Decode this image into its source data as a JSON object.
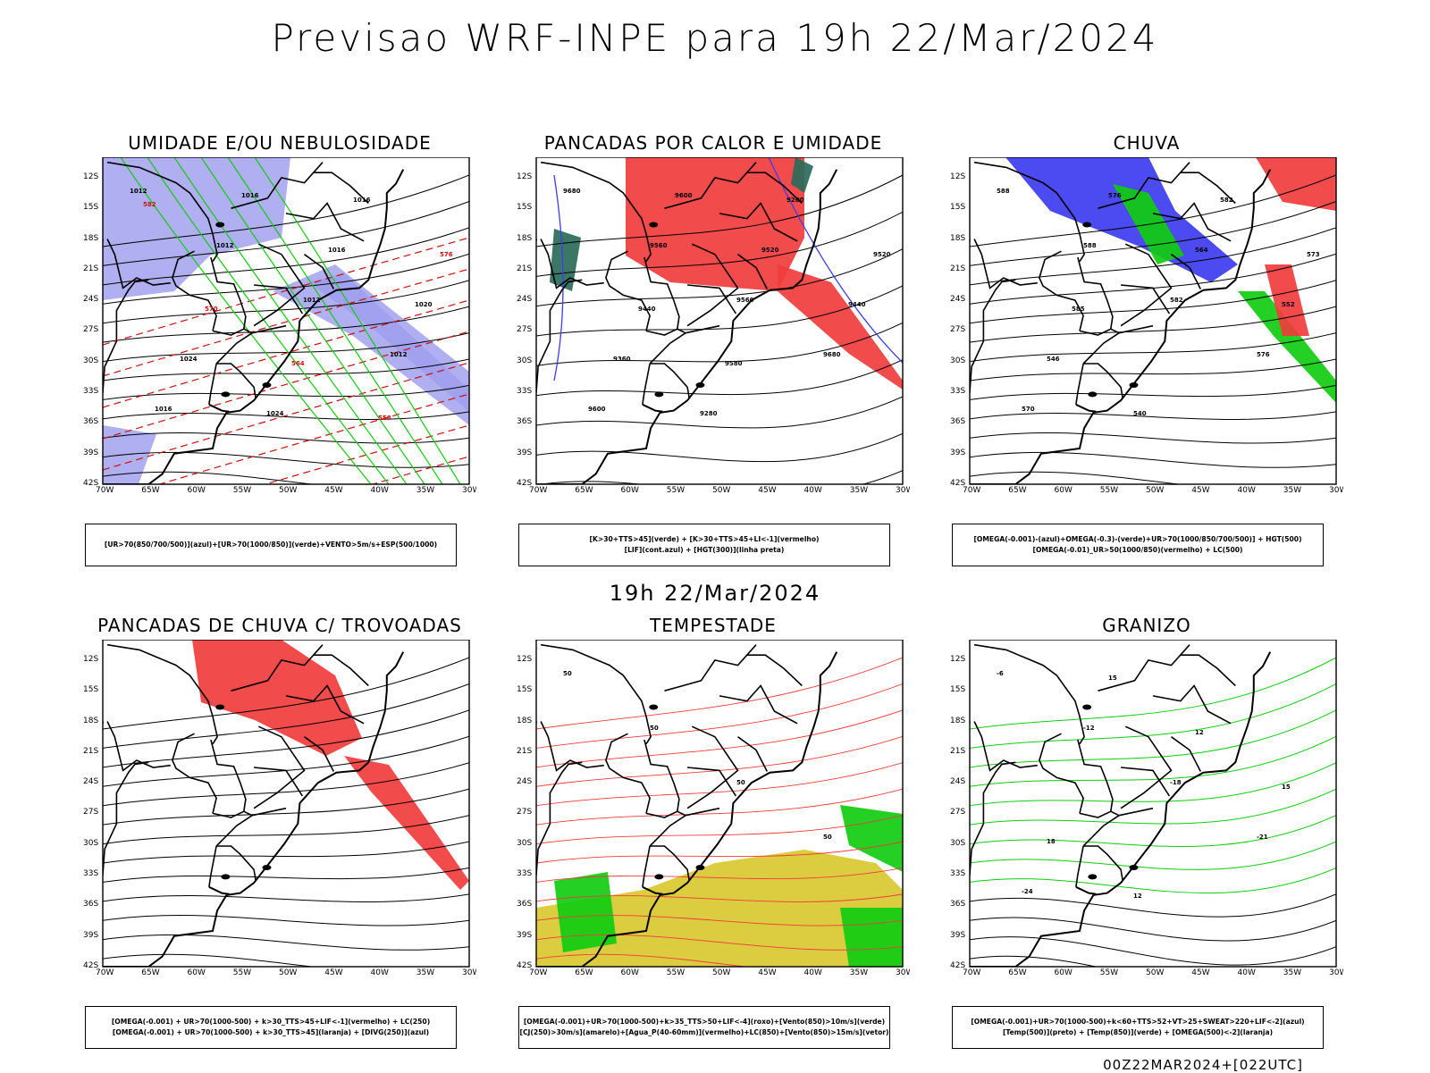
{
  "title": "Previsao WRF-INPE  para 19h 22/Mar/2024",
  "subtitle": "19h 22/Mar/2024",
  "footer": "00Z22MAR2024+[022UTC]",
  "lat_labels": [
    "12S",
    "15S",
    "18S",
    "21S",
    "24S",
    "27S",
    "30S",
    "33S",
    "36S",
    "39S",
    "42S"
  ],
  "lon_labels": [
    "70W",
    "65W",
    "60W",
    "55W",
    "50W",
    "45W",
    "40W",
    "35W",
    "30W"
  ],
  "panels": [
    {
      "title": "UMIDADE E/OU NEBULOSIDADE",
      "legend": [
        "[UR>70(850/700/500)](azul)+[UR>70(1000/850)](verde)+VENTO>5m/s+ESP(500/1000)"
      ],
      "labels": [
        "1012",
        "1012",
        "1012",
        "1012",
        "1016",
        "1016",
        "1016",
        "1020",
        "1024",
        "1024",
        "1016",
        "576",
        "570",
        "564",
        "558",
        "582"
      ]
    },
    {
      "title": "PANCADAS POR CALOR E UMIDADE",
      "legend": [
        "[K>30+TTS>45](verde) + [K>30+TTS>45+LI<-1](vermelho)",
        "[LIF](cont.azul) + [HGT(300)](linha preta)"
      ],
      "labels": [
        "9680",
        "9560",
        "9560",
        "9680",
        "9600",
        "9600",
        "9520",
        "9440",
        "9360",
        "9280",
        "9200",
        "9520",
        "9440",
        "9580"
      ]
    },
    {
      "title": "CHUVA",
      "legend": [
        "[OMEGA(-0.001)-(azul)+OMEGA(-0.3)-(verde)+UR>70(1000/850/700/500)] + HGT(500)",
        "[OMEGA(-0.01)_UR>50(1000/850)(vermelho) + LC(500)"
      ],
      "labels": [
        "588",
        "588",
        "582",
        "576",
        "570",
        "576",
        "564",
        "552",
        "546",
        "540",
        "582",
        "573",
        "585"
      ]
    },
    {
      "title": "PANCADAS DE CHUVA C/ TROVOADAS",
      "legend": [
        "[OMEGA(-0.001) + UR>70(1000-500) + k>30_TTS>45+LIF<-1](vermelho) + LC(250)",
        "[OMEGA(-0.001) + UR>70(1000-500) + k>30_TTS>45](laranja) + [DIVG(250)](azul)"
      ],
      "labels": []
    },
    {
      "title": "TEMPESTADE",
      "legend": [
        "[OMEGA(-0.001)+UR>70(1000-500)+k>35_TTS>50+LIF<-4](roxo)+[Vento(850)>10m/s](verde)",
        "[CJ(250)>30m/s](amarelo)+[Agua_P(40-60mm)](vermelho)+LC(850)+[Vento(850)>15m/s](vetor)"
      ],
      "labels": [
        "50",
        "50",
        "50",
        "50"
      ]
    },
    {
      "title": "GRANIZO",
      "legend": [
        "[OMEGA(-0.001)+UR>70(1000-500)+k<60+TTS>52+VT>25+SWEAT>220+LIF<-2](azul)",
        "[Temp(500)](preto) + [Temp(850)](verde) + [OMEGA(500)<-2](laranja)"
      ],
      "labels": [
        "-6",
        "-12",
        "-18",
        "-21",
        "-24",
        "15",
        "12",
        "15",
        "18",
        "12"
      ]
    }
  ],
  "colors": {
    "blue": "#3c3cf0",
    "lavender": "#a8a8f0",
    "green": "#10cc10",
    "red": "#f03c3c",
    "darkgreen": "#2a6a5a",
    "yellow": "#d8c830",
    "orange": "#e08030",
    "darkred": "#c81010"
  }
}
